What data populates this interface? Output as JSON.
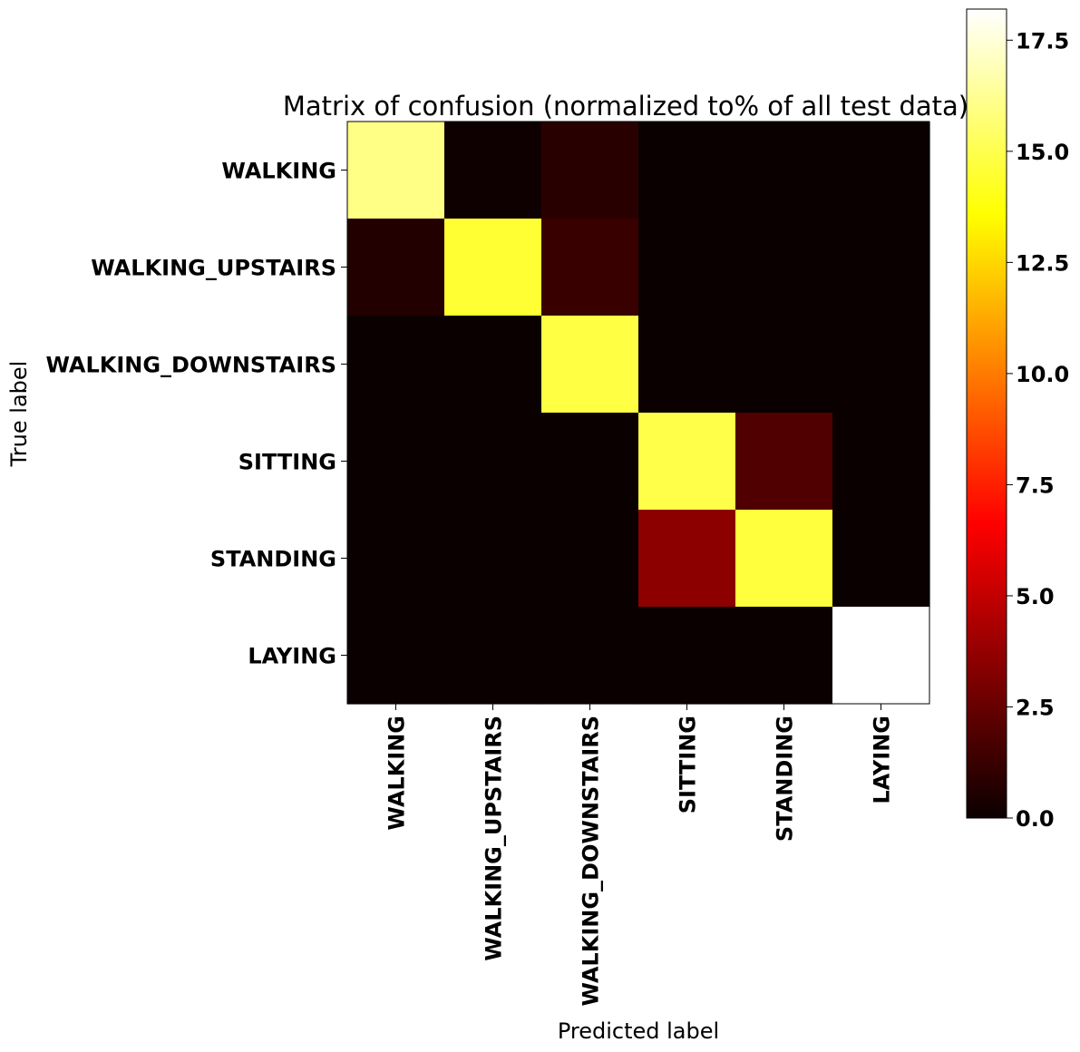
{
  "chart_data": {
    "type": "heatmap",
    "title": "Matrix of confusion (normalized to% of all test data)",
    "xlabel": "Predicted label",
    "ylabel": "True label",
    "x_categories": [
      "WALKING",
      "WALKING_UPSTAIRS",
      "WALKING_DOWNSTAIRS",
      "SITTING",
      "STANDING",
      "LAYING"
    ],
    "y_categories": [
      "WALKING",
      "WALKING_UPSTAIRS",
      "WALKING_DOWNSTAIRS",
      "SITTING",
      "STANDING",
      "LAYING"
    ],
    "values": [
      [
        16.0,
        0.1,
        0.8,
        0.0,
        0.0,
        0.0
      ],
      [
        0.6,
        14.5,
        1.2,
        0.0,
        0.0,
        0.0
      ],
      [
        0.0,
        0.0,
        14.8,
        0.0,
        0.0,
        0.0
      ],
      [
        0.0,
        0.0,
        0.0,
        14.9,
        1.8,
        0.0
      ],
      [
        0.0,
        0.0,
        0.0,
        3.4,
        14.7,
        0.0
      ],
      [
        0.0,
        0.0,
        0.0,
        0.0,
        0.0,
        18.2
      ]
    ],
    "colormap": "hot",
    "colorbar": {
      "range": [
        0.0,
        18.2
      ],
      "ticks": [
        0.0,
        2.5,
        5.0,
        7.5,
        10.0,
        12.5,
        15.0,
        17.5
      ],
      "tick_labels": [
        "0.0",
        "2.5",
        "5.0",
        "7.5",
        "10.0",
        "12.5",
        "15.0",
        "17.5"
      ]
    },
    "grid": false
  }
}
